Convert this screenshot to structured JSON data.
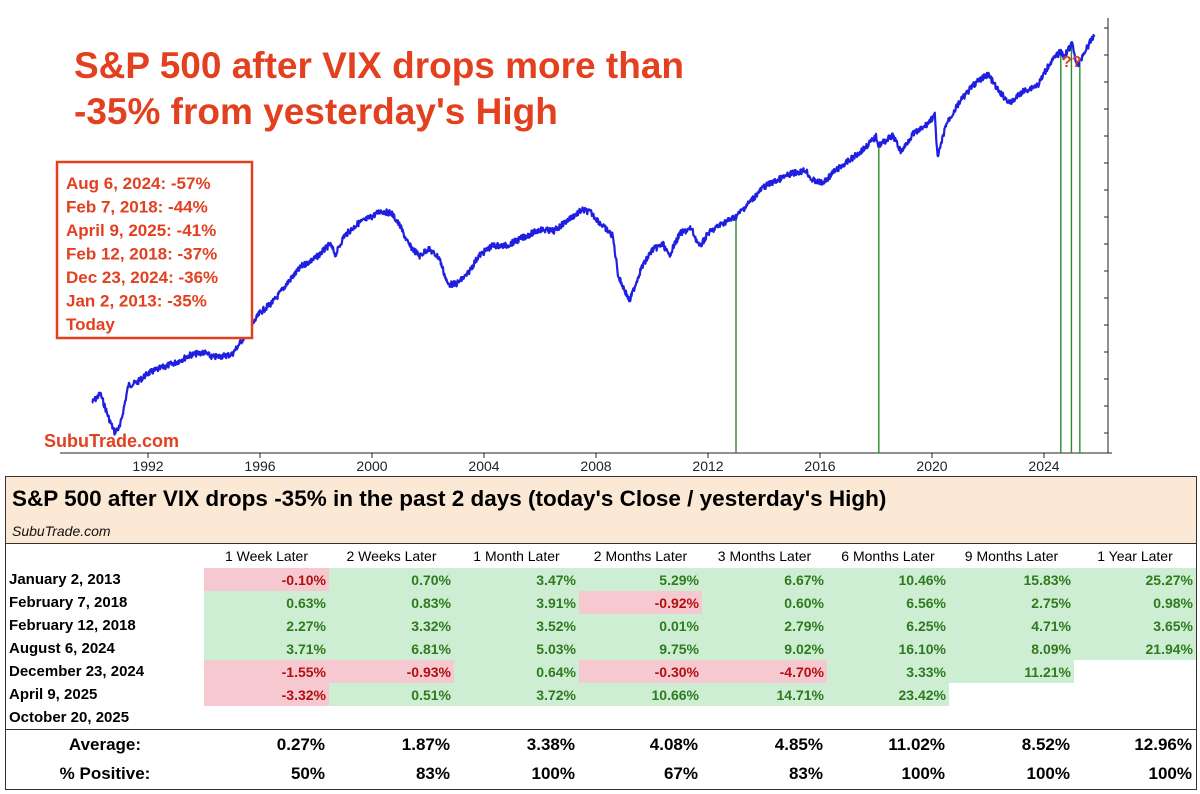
{
  "chart_data": {
    "type": "line",
    "title": "",
    "series": [
      {
        "values": []
      }
    ],
    "x_ticks": [
      "1992",
      "1996",
      "2000",
      "2004",
      "2008",
      "2012",
      "2016",
      "2020",
      "2024"
    ],
    "x_range": [
      1990,
      2026
    ],
    "y_scale": "log",
    "grid": false,
    "line_color": "#1f1fe0",
    "marker_color": "#2e8b2e",
    "path": [
      [
        1990.0,
        1.17
      ],
      [
        1990.3,
        1.26
      ],
      [
        1990.6,
        1.03
      ],
      [
        1990.8,
        0.92
      ],
      [
        1991.0,
        0.96
      ],
      [
        1991.3,
        1.35
      ],
      [
        1991.6,
        1.38
      ],
      [
        1992.0,
        1.49
      ],
      [
        1992.5,
        1.56
      ],
      [
        1993.0,
        1.63
      ],
      [
        1993.5,
        1.73
      ],
      [
        1994.0,
        1.77
      ],
      [
        1994.3,
        1.7
      ],
      [
        1994.7,
        1.72
      ],
      [
        1995.0,
        1.74
      ],
      [
        1995.5,
        2.05
      ],
      [
        1996.0,
        2.45
      ],
      [
        1996.5,
        2.7
      ],
      [
        1997.0,
        3.15
      ],
      [
        1997.5,
        3.6
      ],
      [
        1998.0,
        3.85
      ],
      [
        1998.5,
        4.3
      ],
      [
        1998.7,
        3.95
      ],
      [
        1999.0,
        4.6
      ],
      [
        1999.5,
        5.1
      ],
      [
        2000.0,
        5.4
      ],
      [
        2000.3,
        5.65
      ],
      [
        2000.7,
        5.55
      ],
      [
        2001.0,
        5.0
      ],
      [
        2001.3,
        4.3
      ],
      [
        2001.7,
        3.9
      ],
      [
        2002.0,
        4.15
      ],
      [
        2002.4,
        3.85
      ],
      [
        2002.7,
        3.1
      ],
      [
        2003.0,
        3.1
      ],
      [
        2003.4,
        3.35
      ],
      [
        2003.8,
        3.9
      ],
      [
        2004.3,
        4.25
      ],
      [
        2004.8,
        4.25
      ],
      [
        2005.5,
        4.6
      ],
      [
        2006.0,
        4.85
      ],
      [
        2006.5,
        4.8
      ],
      [
        2007.0,
        5.25
      ],
      [
        2007.5,
        5.7
      ],
      [
        2007.8,
        5.6
      ],
      [
        2008.2,
        5.05
      ],
      [
        2008.6,
        4.6
      ],
      [
        2008.8,
        3.3
      ],
      [
        2009.2,
        2.7
      ],
      [
        2009.6,
        3.5
      ],
      [
        2010.0,
        4.1
      ],
      [
        2010.4,
        4.3
      ],
      [
        2010.6,
        3.9
      ],
      [
        2011.0,
        4.7
      ],
      [
        2011.4,
        4.9
      ],
      [
        2011.7,
        4.2
      ],
      [
        2012.0,
        4.7
      ],
      [
        2012.5,
        5.1
      ],
      [
        2013.0,
        5.4
      ],
      [
        2013.5,
        6.1
      ],
      [
        2014.0,
        6.9
      ],
      [
        2014.5,
        7.3
      ],
      [
        2015.0,
        7.7
      ],
      [
        2015.5,
        7.9
      ],
      [
        2015.7,
        7.3
      ],
      [
        2016.1,
        7.1
      ],
      [
        2016.5,
        7.8
      ],
      [
        2017.0,
        8.5
      ],
      [
        2017.5,
        9.3
      ],
      [
        2018.0,
        10.4
      ],
      [
        2018.1,
        9.7
      ],
      [
        2018.6,
        10.5
      ],
      [
        2018.9,
        9.2
      ],
      [
        2019.3,
        10.6
      ],
      [
        2019.7,
        11.2
      ],
      [
        2020.1,
        12.4
      ],
      [
        2020.2,
        8.7
      ],
      [
        2020.5,
        11.5
      ],
      [
        2021.0,
        13.9
      ],
      [
        2021.5,
        16.0
      ],
      [
        2022.0,
        17.4
      ],
      [
        2022.4,
        15.0
      ],
      [
        2022.8,
        13.7
      ],
      [
        2023.2,
        15.0
      ],
      [
        2023.8,
        16.0
      ],
      [
        2024.2,
        19.0
      ],
      [
        2024.6,
        21.0
      ],
      [
        2024.7,
        20.0
      ],
      [
        2025.0,
        22.3
      ],
      [
        2025.2,
        18.5
      ],
      [
        2025.4,
        20.5
      ],
      [
        2025.8,
        24.0
      ]
    ],
    "events": [
      2013.0,
      2018.1,
      2024.6,
      2024.98,
      2025.28
    ],
    "table": {
      "title": "S&P 500 after VIX drops -35% in the past 2 days (today's Close / yesterday's High)",
      "columns": [
        "1 Week Later",
        "2 Weeks Later",
        "1 Month Later",
        "2 Months Later",
        "3 Months Later",
        "6 Months Later",
        "9 Months Later",
        "1 Year Later"
      ],
      "rows": [
        {
          "date": "January 2, 2013",
          "values": [
            "-0.10%",
            "0.70%",
            "3.47%",
            "5.29%",
            "6.67%",
            "10.46%",
            "15.83%",
            "25.27%"
          ]
        },
        {
          "date": "February 7, 2018",
          "values": [
            "0.63%",
            "0.83%",
            "3.91%",
            "-0.92%",
            "0.60%",
            "6.56%",
            "2.75%",
            "0.98%"
          ]
        },
        {
          "date": "February 12, 2018",
          "values": [
            "2.27%",
            "3.32%",
            "3.52%",
            "0.01%",
            "2.79%",
            "6.25%",
            "4.71%",
            "3.65%"
          ]
        },
        {
          "date": "August 6, 2024",
          "values": [
            "3.71%",
            "6.81%",
            "5.03%",
            "9.75%",
            "9.02%",
            "16.10%",
            "8.09%",
            "21.94%"
          ]
        },
        {
          "date": "December 23, 2024",
          "values": [
            "-1.55%",
            "-0.93%",
            "0.64%",
            "-0.30%",
            "-4.70%",
            "3.33%",
            "11.21%",
            ""
          ]
        },
        {
          "date": "April 9, 2025",
          "values": [
            "-3.32%",
            "0.51%",
            "3.72%",
            "10.66%",
            "14.71%",
            "23.42%",
            "",
            ""
          ]
        },
        {
          "date": "October 20, 2025",
          "values": [
            "",
            "",
            "",
            "",
            "",
            "",
            "",
            ""
          ]
        }
      ],
      "average_label": "Average:",
      "average": [
        "0.27%",
        "1.87%",
        "3.38%",
        "4.08%",
        "4.85%",
        "11.02%",
        "8.52%",
        "12.96%"
      ],
      "positive_label": "% Positive:",
      "positive": [
        "50%",
        "83%",
        "100%",
        "67%",
        "83%",
        "100%",
        "100%",
        "100%"
      ]
    }
  },
  "chart": {
    "title_line1": "S&P 500 after VIX drops more than",
    "title_line2": "-35% from yesterday's High",
    "legend": [
      "Aug 6, 2024: -57%",
      "Feb 7, 2018: -44%",
      "April 9, 2025: -41%",
      "Feb 12, 2018: -37%",
      "Dec 23, 2024: -36%",
      "Jan 2, 2013: -35%",
      "Today"
    ],
    "brand": "SubuTrade.com",
    "question": "??"
  },
  "table_header": {
    "title": "S&P 500 after VIX drops -35% in the past 2 days (today's Close / yesterday's High)",
    "source": "SubuTrade.com"
  }
}
